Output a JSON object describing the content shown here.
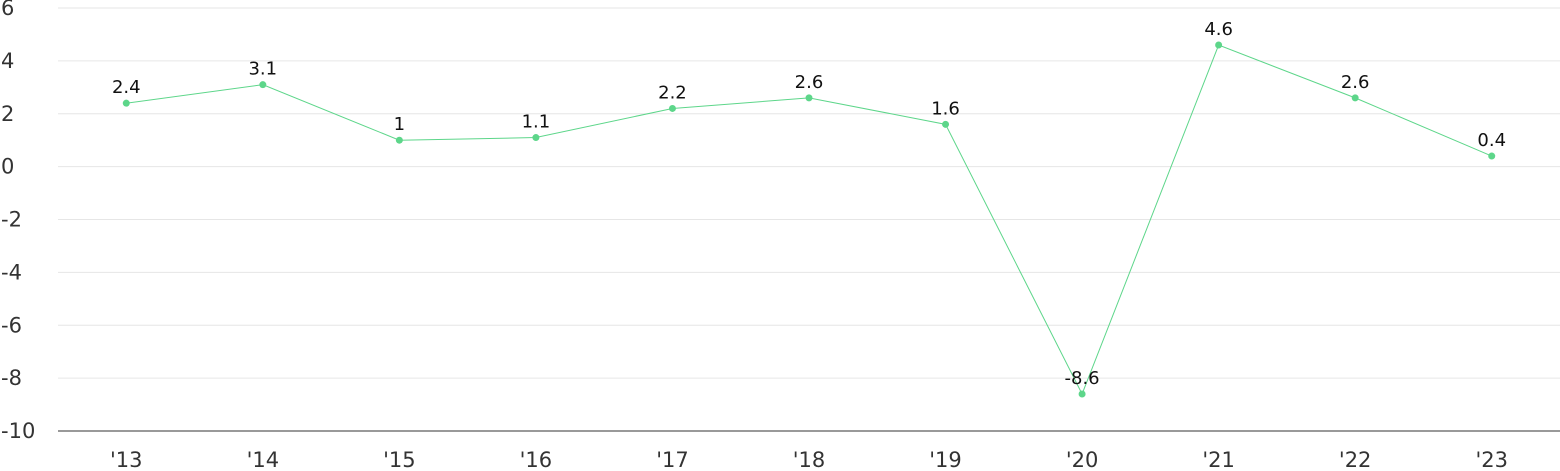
{
  "chart_data": {
    "type": "line",
    "categories": [
      "'13",
      "'14",
      "'15",
      "'16",
      "'17",
      "'18",
      "'19",
      "'20",
      "'21",
      "'22",
      "'23"
    ],
    "series": [
      {
        "color": "#5dd68a",
        "values": [
          2.4,
          3.1,
          1,
          1.1,
          2.2,
          2.6,
          1.6,
          -8.6,
          4.6,
          2.6,
          0.4
        ]
      }
    ],
    "ylim": [
      -10,
      6
    ],
    "yticks": [
      -10,
      -8,
      -6,
      -4,
      -2,
      0,
      2,
      4,
      6
    ],
    "grid": true
  }
}
